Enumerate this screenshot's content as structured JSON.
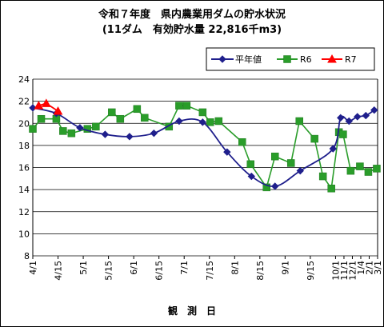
{
  "chart_data": {
    "type": "line",
    "title": "令和７年度　県内農業用ダムの貯水状況",
    "subtitle": "(11ダム　有効貯水量 22,816千m3)",
    "xlabel": "観　測　日",
    "ylabel": "",
    "ylim": [
      8,
      24
    ],
    "y_ticks": [
      "8",
      "10",
      "12",
      "14",
      "16",
      "18",
      "20",
      "22",
      "24"
    ],
    "grid": true,
    "legend_position": "top-right",
    "x_ticks": [
      {
        "label": "4/1",
        "x": 0
      },
      {
        "label": "4/15",
        "x": 3
      },
      {
        "label": "5/1",
        "x": 6
      },
      {
        "label": "5/15",
        "x": 9
      },
      {
        "label": "6/1",
        "x": 12
      },
      {
        "label": "6/15",
        "x": 15
      },
      {
        "label": "7/1",
        "x": 18
      },
      {
        "label": "7/15",
        "x": 21
      },
      {
        "label": "8/1",
        "x": 24
      },
      {
        "label": "8/15",
        "x": 27
      },
      {
        "label": "9/1",
        "x": 30
      },
      {
        "label": "9/15",
        "x": 33
      },
      {
        "label": "10/1",
        "x": 36
      },
      {
        "label": "11/1",
        "x": 37
      },
      {
        "label": "12/1",
        "x": 38
      },
      {
        "label": "1/4",
        "x": 39
      },
      {
        "label": "2/1",
        "x": 40
      },
      {
        "label": "3/1",
        "x": 41
      }
    ],
    "x_min": 0,
    "x_max": 41,
    "series": [
      {
        "name": "平年値",
        "color": "#1f1f8c",
        "marker": "diamond",
        "x": [
          0,
          2.8,
          5.6,
          8.6,
          11.5,
          14.4,
          17.4,
          20.2,
          23.1,
          26.0,
          28.8,
          31.8,
          35.7,
          36.6,
          37.6,
          38.6,
          39.6,
          40.6
        ],
        "y": [
          21.4,
          20.9,
          19.6,
          19.0,
          18.8,
          19.1,
          20.2,
          20.1,
          17.4,
          15.2,
          14.3,
          15.7,
          17.7,
          20.5,
          20.2,
          20.6,
          20.7,
          21.2
        ]
      },
      {
        "name": "R6",
        "color": "#2a9d2a",
        "marker": "square",
        "x": [
          0,
          1.0,
          2.8,
          3.6,
          4.6,
          6.5,
          7.5,
          9.4,
          10.4,
          12.4,
          13.3,
          16.2,
          17.4,
          18.3,
          20.2,
          21.1,
          22.1,
          24.9,
          25.9,
          27.8,
          28.8,
          30.7,
          31.7,
          33.5,
          34.5,
          35.5,
          36.4,
          36.9,
          37.8,
          38.9,
          39.9,
          40.9
        ],
        "y": [
          19.5,
          20.4,
          20.4,
          19.3,
          19.1,
          19.5,
          19.7,
          21.0,
          20.4,
          21.3,
          20.5,
          19.7,
          21.6,
          21.6,
          21.0,
          20.1,
          20.2,
          18.3,
          16.3,
          14.2,
          17.0,
          16.4,
          20.2,
          18.6,
          15.2,
          14.1,
          19.2,
          19.0,
          15.7,
          16.1,
          15.6,
          15.9
        ]
      },
      {
        "name": "R7",
        "color": "#ff0000",
        "marker": "triangle",
        "x": [
          0.7,
          1.6,
          3.0
        ],
        "y": [
          21.6,
          21.8,
          21.1
        ]
      }
    ]
  }
}
